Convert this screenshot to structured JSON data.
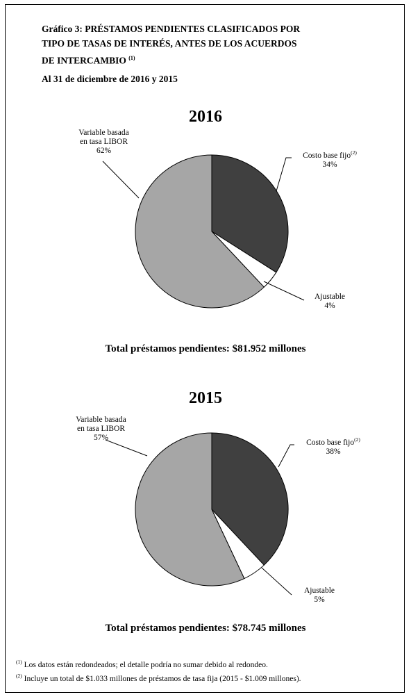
{
  "title_line1": "Gráfico 3: PRÉSTAMOS PENDIENTES CLASIFICADOS POR",
  "title_line2": "TIPO DE TASAS DE INTERÉS, ANTES DE LOS ACUERDOS",
  "title_line3": "DE INTERCAMBIO",
  "title_note_ref": "(1)",
  "subtitle": "Al 31 de diciembre de 2016 y 2015",
  "colors": {
    "fixed": "#404040",
    "adjustable": "#ffffff",
    "libor": "#a6a6a6",
    "stroke": "#000000"
  },
  "chart_data": [
    {
      "type": "pie",
      "title": "2016",
      "slices": [
        {
          "label": "Costo base fijo",
          "note_ref": "(2)",
          "value": 34,
          "display": "34%"
        },
        {
          "label": "Ajustable",
          "value": 4,
          "display": "4%"
        },
        {
          "label": "Variable basada en tasa LIBOR",
          "label_line1": "Variable basada",
          "label_line2": "en tasa LIBOR",
          "value": 62,
          "display": "62%"
        }
      ],
      "total_label": "Total préstamos pendientes: $81.952 millones"
    },
    {
      "type": "pie",
      "title": "2015",
      "slices": [
        {
          "label": "Costo base fijo",
          "note_ref": "(2)",
          "value": 38,
          "display": "38%"
        },
        {
          "label": "Ajustable",
          "value": 5,
          "display": "5%"
        },
        {
          "label": "Variable basada en tasa LIBOR",
          "label_line1": "Variable basada",
          "label_line2": "en tasa LIBOR",
          "value": 57,
          "display": "57%"
        }
      ],
      "total_label": "Total préstamos pendientes: $78.745 millones"
    }
  ],
  "footnotes": [
    {
      "ref": "(1)",
      "text": "Los datos están redondeados; el detalle podría no sumar debido al redondeo."
    },
    {
      "ref": "(2)",
      "text": "Incluye un total de $1.033 millones de préstamos de tasa fija (2015 - $1.009 millones)."
    }
  ]
}
